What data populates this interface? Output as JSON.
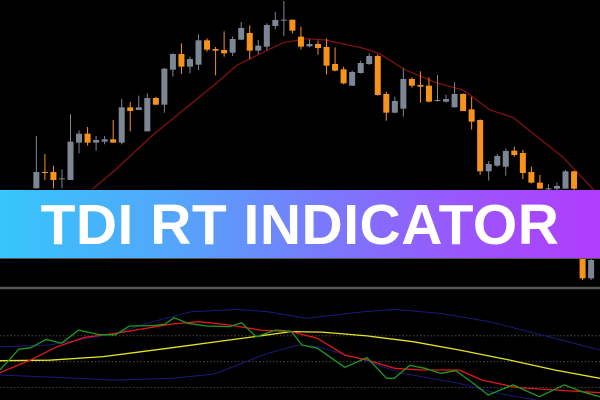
{
  "banner": {
    "title": "TDI RT INDICATOR"
  },
  "colors": {
    "bull_candle": "#7d8794",
    "bear_candle": "#f7931a",
    "moving_average": "#8b1010",
    "tdi_price_line": "#1f9a1f",
    "tdi_signal_line": "#e01818",
    "tdi_market_base": "#e3e326",
    "tdi_volatility_band": "#1a1a7a",
    "level_lines": "#555555",
    "separator": "#555555",
    "banner_gradient": [
      "#36c6fb",
      "#55a4fb",
      "#7a78fb",
      "#9b55fc",
      "#b13cfd"
    ]
  },
  "chart_data": [
    {
      "type": "candlestick",
      "title": "",
      "first_bar": 4.26,
      "candles": [
        [
          35,
          192,
          35,
          84
        ],
        [
          84,
          138,
          60,
          82
        ],
        [
          84,
          103,
          35,
          60
        ],
        [
          62,
          92,
          35,
          65
        ],
        [
          60,
          257,
          60,
          175
        ],
        [
          172,
          209,
          140,
          199
        ],
        [
          199,
          219,
          163,
          172
        ],
        [
          172,
          192,
          148,
          180
        ],
        [
          175,
          192,
          167,
          182
        ],
        [
          182,
          240,
          172,
          172
        ],
        [
          172,
          303,
          167,
          278
        ],
        [
          278,
          294,
          206,
          267
        ],
        [
          270,
          313,
          270,
          278
        ],
        [
          206,
          320,
          206,
          306
        ],
        [
          306,
          310,
          284,
          286
        ],
        [
          286,
          396,
          262,
          394
        ],
        [
          391,
          440,
          370,
          438
        ],
        [
          438,
          470,
          378,
          400
        ],
        [
          400,
          430,
          380,
          423
        ],
        [
          406,
          497,
          390,
          479
        ],
        [
          479,
          485,
          445,
          451
        ],
        [
          453,
          459,
          374,
          448
        ],
        [
          450,
          506,
          430,
          440
        ],
        [
          442,
          490,
          432,
          483
        ],
        [
          481,
          534,
          480,
          516
        ],
        [
          501,
          524,
          422,
          448
        ],
        [
          448,
          480,
          438,
          463
        ],
        [
          460,
          530,
          450,
          525
        ],
        [
          522,
          564,
          512,
          540
        ],
        [
          538,
          597,
          492,
          541
        ],
        [
          541,
          541,
          500,
          508
        ],
        [
          490,
          520,
          452,
          460
        ],
        [
          461,
          482,
          458,
          468
        ],
        [
          468,
          478,
          436,
          456
        ],
        [
          459,
          484,
          377,
          403
        ],
        [
          408,
          458,
          386,
          388
        ],
        [
          392,
          400,
          347,
          350
        ],
        [
          343,
          388,
          342,
          384
        ],
        [
          381,
          418,
          379,
          411
        ],
        [
          408,
          440,
          405,
          432
        ],
        [
          432,
          437,
          313,
          315
        ],
        [
          318,
          325,
          238,
          262
        ],
        [
          262,
          310,
          260,
          297
        ],
        [
          274,
          395,
          250,
          363
        ],
        [
          363,
          368,
          337,
          343
        ],
        [
          345,
          386,
          292,
          340
        ],
        [
          343,
          368,
          293,
          295
        ],
        [
          297,
          375,
          295,
          300
        ],
        [
          295,
          316,
          292,
          303
        ],
        [
          278,
          353,
          277,
          318
        ],
        [
          318,
          320,
          267,
          267
        ],
        [
          272,
          309,
          211,
          235
        ],
        [
          240,
          242,
          75,
          86
        ],
        [
          86,
          117,
          58,
          108
        ],
        [
          103,
          138,
          100,
          132
        ],
        [
          100,
          154,
          73,
          147
        ],
        [
          148,
          160,
          130,
          135
        ],
        [
          141,
          150,
          63,
          81
        ],
        [
          84,
          100,
          50,
          52
        ],
        [
          52,
          75,
          34,
          34
        ],
        [
          35,
          48,
          30,
          35
        ],
        [
          34,
          52,
          30,
          42
        ],
        [
          34,
          90,
          34,
          86
        ],
        [
          86,
          88,
          30,
          34
        ],
        [
          -170,
          -170,
          -240,
          -235
        ],
        [
          -235,
          -175,
          -240,
          -180
        ]
      ],
      "moving_average": {
        "x": [
          10.8,
          13.5,
          17.9,
          21.5,
          25.1,
          27.8,
          31.4,
          33.2,
          35.9,
          38.1,
          42.6,
          44.4,
          47.5,
          51.1,
          54.3,
          57.4,
          60.1,
          65.9,
          69.5,
          70.3
        ],
        "y": [
          32,
          90,
          195,
          270,
          345,
          405,
          450,
          472,
          484,
          480,
          455,
          440,
          390,
          352,
          330,
          270,
          248,
          130,
          32,
          10
        ]
      }
    },
    {
      "type": "line",
      "title": "",
      "levels": [
        68,
        50,
        32
      ],
      "series": [
        {
          "key": "volatility_upper",
          "x": [
            0,
            5.8,
            13.5,
            17.9,
            22.4,
            27.8,
            31.4,
            35.9,
            42.6,
            46.2,
            51.6,
            57.4,
            65,
            70.3
          ],
          "y": [
            60.4,
            61.6,
            69.7,
            77.8,
            84.8,
            86.4,
            84.8,
            80.2,
            84.8,
            86.4,
            83.6,
            77.8,
            66.2,
            58.1
          ]
        },
        {
          "key": "volatility_lower",
          "x": [
            0,
            9,
            13.5,
            20.2,
            25.1,
            31.4,
            35,
            37.2,
            42.6,
            47.1,
            53.8,
            58.3,
            62.8
          ],
          "y": [
            40.7,
            38.4,
            37.2,
            38.4,
            41.4,
            55.8,
            61.6,
            60.4,
            51.2,
            41.9,
            34.9,
            28,
            23.3
          ]
        },
        {
          "key": "market_base",
          "x": [
            0,
            5.8,
            12.1,
            20.2,
            26,
            30.5,
            34.1,
            37.7,
            43,
            48.4,
            53.8,
            59.6,
            65,
            70.3
          ],
          "y": [
            50.7,
            51,
            53.5,
            59.7,
            64.4,
            67.9,
            70.9,
            70.6,
            67.9,
            63.9,
            58.1,
            51.2,
            44.2,
            38.4
          ]
        },
        {
          "key": "signal_line",
          "x": [
            0,
            3.6,
            6.7,
            9.9,
            13.5,
            20.2,
            23.3,
            26.9,
            30.5,
            34.1,
            37.2,
            40.4,
            43,
            46.2,
            49.3,
            53.8,
            56.5,
            60.5,
            65,
            70.3
          ],
          "y": [
            42.3,
            51.2,
            60.4,
            66.9,
            69.7,
            76.2,
            77.8,
            75.5,
            72,
            70.9,
            66.2,
            54.6,
            51.2,
            45.4,
            44.2,
            44.2,
            37.2,
            32.1,
            30.3,
            28.4
          ]
        },
        {
          "key": "price_line",
          "x": [
            0,
            2.2,
            3.6,
            5.4,
            7.2,
            9.2,
            11.7,
            13.5,
            15.2,
            17.9,
            19.3,
            20.4,
            22,
            24.2,
            26.9,
            28.3,
            30,
            32.3,
            34.1,
            35.4,
            37.2,
            40.4,
            43,
            45.3,
            46.2,
            48,
            49.8,
            51.6,
            53.4,
            55.2,
            57.2,
            60.1,
            63.2,
            66.1,
            68.2,
            70.3
          ],
          "y": [
            44.2,
            58.6,
            59.7,
            65.5,
            62.8,
            72,
            68.8,
            68.6,
            74.8,
            75.1,
            76,
            80.6,
            76.7,
            74.8,
            74.4,
            77.1,
            67.4,
            72,
            71.3,
            61.6,
            59.3,
            46.1,
            52.8,
            38.4,
            38.4,
            47.4,
            45.4,
            41.9,
            43.7,
            36.1,
            26.8,
            33.8,
            25.6,
            33.8,
            29.1,
            25.6
          ]
        }
      ]
    }
  ]
}
